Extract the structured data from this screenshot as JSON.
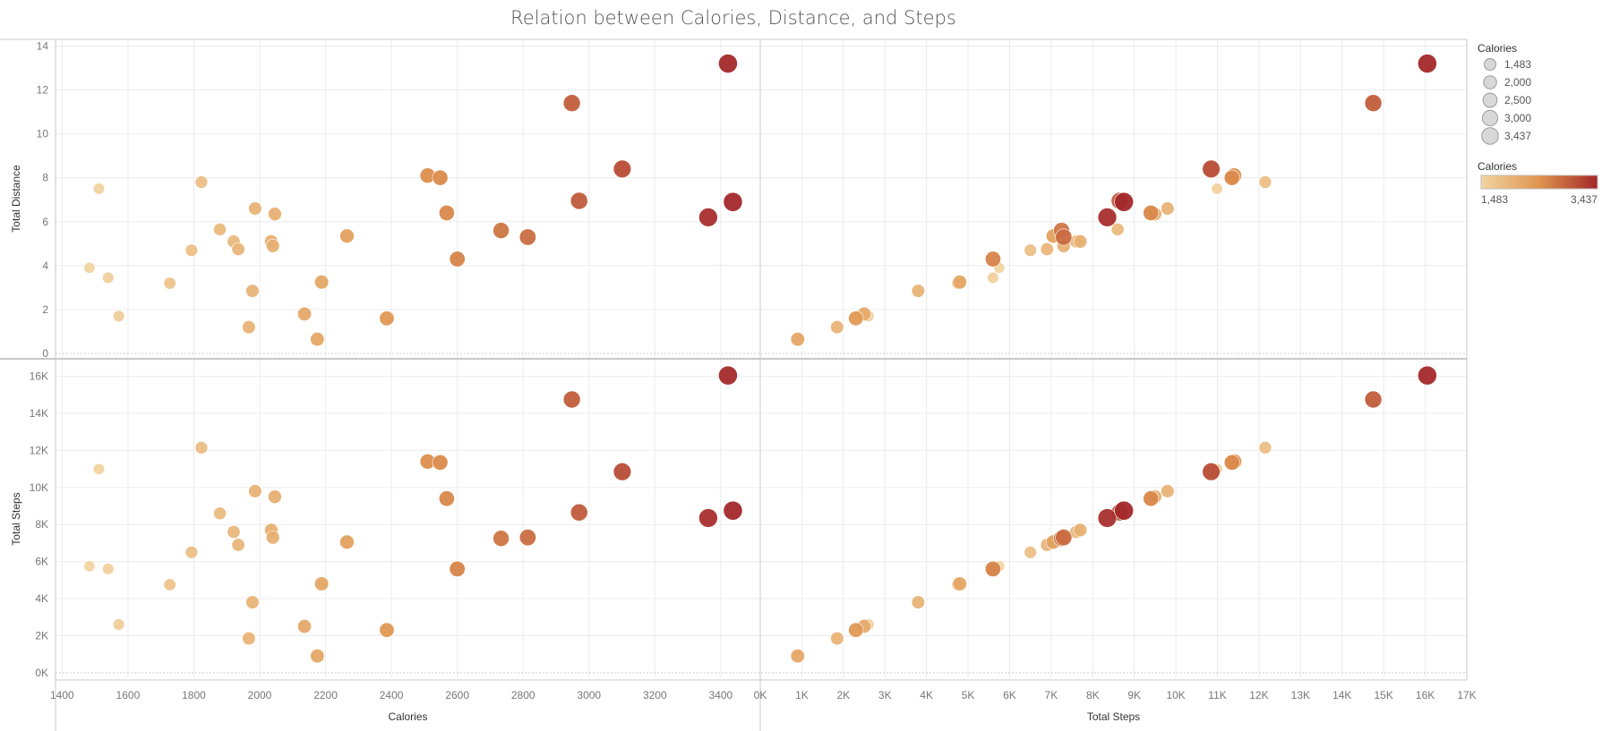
{
  "title": "Relation between Calories, Distance, and Steps",
  "colors": {
    "low": "#f2d4a2",
    "mid": "#df944e",
    "high": "#a3272a",
    "grid": "#ececec",
    "axis": "#c8c8c8"
  },
  "chart_data": {
    "type": "scatter",
    "layout": "scatter-matrix",
    "columns": [
      {
        "field": "calories",
        "title": "Calories",
        "range": [
          1380,
          3520
        ],
        "ticks": [
          1400,
          1600,
          1800,
          2000,
          2200,
          2400,
          2600,
          2800,
          3000,
          3200,
          3400
        ],
        "tick_labels": [
          "1400",
          "1600",
          "1800",
          "2000",
          "2200",
          "2400",
          "2600",
          "2800",
          "3000",
          "3200",
          "3400"
        ]
      },
      {
        "field": "steps",
        "title": "Total Steps",
        "range": [
          0,
          17000
        ],
        "ticks": [
          0,
          1000,
          2000,
          3000,
          4000,
          5000,
          6000,
          7000,
          8000,
          9000,
          10000,
          11000,
          12000,
          13000,
          14000,
          15000,
          16000,
          17000
        ],
        "tick_labels": [
          "0K",
          "1K",
          "2K",
          "3K",
          "4K",
          "5K",
          "6K",
          "7K",
          "8K",
          "9K",
          "10K",
          "11K",
          "12K",
          "13K",
          "14K",
          "15K",
          "16K",
          "17K"
        ]
      }
    ],
    "rows": [
      {
        "field": "distance",
        "title": "Total Distance",
        "range": [
          -0.2,
          14.3
        ],
        "ticks": [
          0,
          2,
          4,
          6,
          8,
          10,
          12,
          14
        ],
        "tick_labels": [
          "0",
          "2",
          "4",
          "6",
          "8",
          "10",
          "12",
          "14"
        ]
      },
      {
        "field": "steps",
        "title": "Total Steps",
        "range": [
          -300,
          16900
        ],
        "ticks": [
          0,
          2000,
          4000,
          6000,
          8000,
          10000,
          12000,
          14000,
          16000
        ],
        "tick_labels": [
          "0K",
          "2K",
          "4K",
          "6K",
          "8K",
          "10K",
          "12K",
          "14K",
          "16K"
        ]
      }
    ],
    "size_legend": {
      "title": "Calories",
      "values": [
        "1,483",
        "2,000",
        "2,500",
        "3,000",
        "3,437"
      ]
    },
    "color_legend": {
      "title": "Calories",
      "min_label": "1,483",
      "max_label": "3,437",
      "min": 1483,
      "max": 3437
    },
    "points": [
      {
        "calories": 1483,
        "distance": 3.9,
        "steps": 5750
      },
      {
        "calories": 1512,
        "distance": 7.5,
        "steps": 10990
      },
      {
        "calories": 1540,
        "distance": 3.45,
        "steps": 5600
      },
      {
        "calories": 1572,
        "distance": 1.7,
        "steps": 2600
      },
      {
        "calories": 1727,
        "distance": 3.2,
        "steps": 4750
      },
      {
        "calories": 1793,
        "distance": 4.7,
        "steps": 6500
      },
      {
        "calories": 1823,
        "distance": 7.8,
        "steps": 12150
      },
      {
        "calories": 1879,
        "distance": 5.65,
        "steps": 8600
      },
      {
        "calories": 1921,
        "distance": 5.1,
        "steps": 7600
      },
      {
        "calories": 1935,
        "distance": 4.75,
        "steps": 6900
      },
      {
        "calories": 1967,
        "distance": 1.2,
        "steps": 1850
      },
      {
        "calories": 1978,
        "distance": 2.85,
        "steps": 3800
      },
      {
        "calories": 1986,
        "distance": 6.6,
        "steps": 9800
      },
      {
        "calories": 2035,
        "distance": 5.1,
        "steps": 7700
      },
      {
        "calories": 2040,
        "distance": 4.9,
        "steps": 7300
      },
      {
        "calories": 2046,
        "distance": 6.35,
        "steps": 9500
      },
      {
        "calories": 2136,
        "distance": 1.8,
        "steps": 2500
      },
      {
        "calories": 2175,
        "distance": 0.65,
        "steps": 900
      },
      {
        "calories": 2188,
        "distance": 3.25,
        "steps": 4800
      },
      {
        "calories": 2265,
        "distance": 5.35,
        "steps": 7050
      },
      {
        "calories": 2386,
        "distance": 1.6,
        "steps": 2300
      },
      {
        "calories": 2510,
        "distance": 8.1,
        "steps": 11400
      },
      {
        "calories": 2548,
        "distance": 8.0,
        "steps": 11350
      },
      {
        "calories": 2568,
        "distance": 6.4,
        "steps": 9400
      },
      {
        "calories": 2600,
        "distance": 4.3,
        "steps": 5600
      },
      {
        "calories": 2733,
        "distance": 5.6,
        "steps": 7250
      },
      {
        "calories": 2814,
        "distance": 5.3,
        "steps": 7300
      },
      {
        "calories": 2948,
        "distance": 11.4,
        "steps": 14750
      },
      {
        "calories": 2970,
        "distance": 6.95,
        "steps": 8650
      },
      {
        "calories": 3101,
        "distance": 8.4,
        "steps": 10850
      },
      {
        "calories": 3362,
        "distance": 6.2,
        "steps": 8350
      },
      {
        "calories": 3422,
        "distance": 13.2,
        "steps": 16050
      },
      {
        "calories": 3437,
        "distance": 6.9,
        "steps": 8750
      }
    ]
  }
}
